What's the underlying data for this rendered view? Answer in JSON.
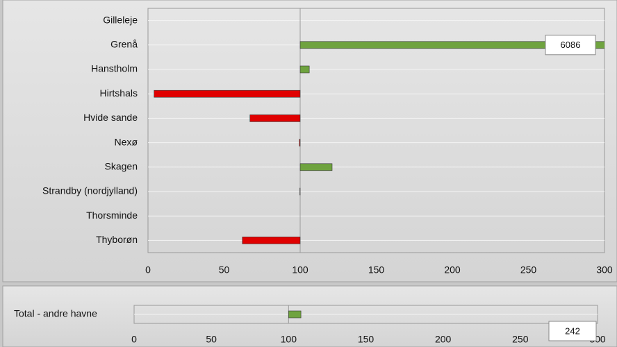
{
  "chart_data": [
    {
      "type": "hbar",
      "categories": [
        "Gilleleje",
        "Grenå",
        "Hanstholm",
        "Hirtshals",
        "Hvide sande",
        "Nexø",
        "Skagen",
        "Strandby (nordjylland)",
        "Thorsminde",
        "Thyborøn"
      ],
      "values": [
        null,
        6086,
        106,
        4,
        67,
        99.5,
        121,
        99.8,
        null,
        62
      ],
      "value_labels": [
        null,
        "6086",
        null,
        null,
        null,
        null,
        null,
        null,
        null,
        null
      ],
      "base": 100,
      "xlim": [
        0,
        300
      ],
      "xticks": [
        0,
        50,
        100,
        150,
        200,
        250,
        300
      ],
      "colors": {
        "increase": "#6fa33f",
        "decrease": "#e00000"
      },
      "grid": true
    },
    {
      "type": "hbar",
      "categories": [
        "Total - andre havne"
      ],
      "values": [
        108
      ],
      "annotation": "242",
      "base": 100,
      "xlim": [
        0,
        300
      ],
      "xticks": [
        0,
        50,
        100,
        150,
        200,
        250,
        300
      ],
      "colors": {
        "increase": "#6fa33f",
        "decrease": "#e00000"
      },
      "grid": true
    }
  ]
}
